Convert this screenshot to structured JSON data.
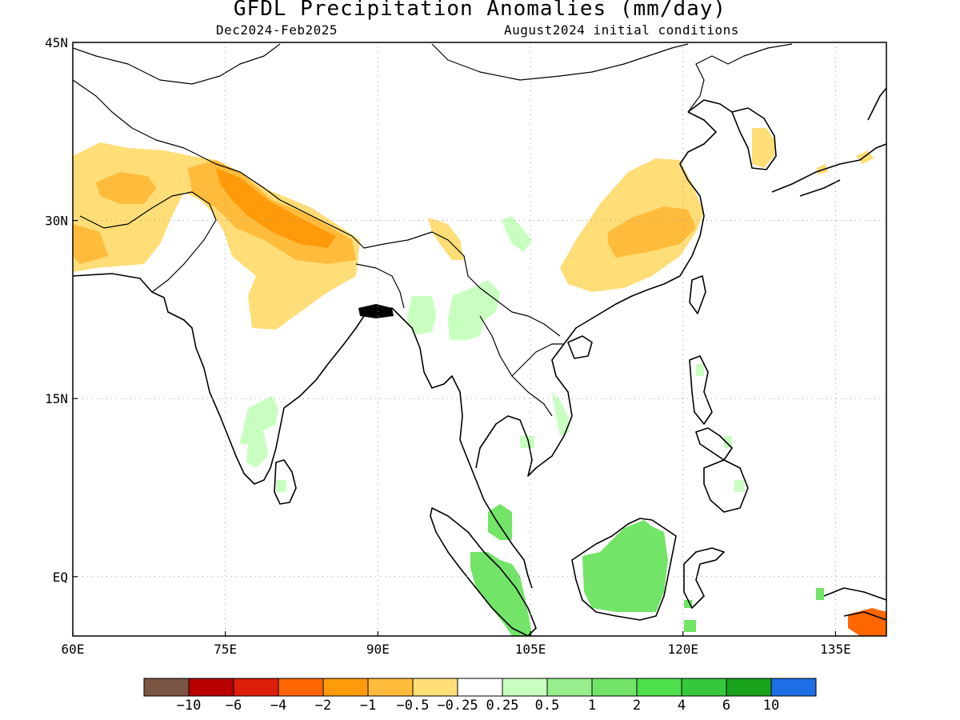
{
  "title": "GFDL Precipitation Anomalies (mm/day)",
  "subtitle_left": "Dec2024-Feb2025",
  "subtitle_right": "August2024 initial conditions",
  "map": {
    "lon_range": [
      60,
      140
    ],
    "lat_range": [
      -5,
      45
    ],
    "lon_ticks": [
      {
        "value": 60,
        "label": "60E"
      },
      {
        "value": 75,
        "label": "75E"
      },
      {
        "value": 90,
        "label": "90E"
      },
      {
        "value": 105,
        "label": "105E"
      },
      {
        "value": 120,
        "label": "120E"
      },
      {
        "value": 135,
        "label": "135E"
      }
    ],
    "lat_ticks": [
      {
        "value": 45,
        "label": "45N"
      },
      {
        "value": 30,
        "label": "30N"
      },
      {
        "value": 15,
        "label": "15N"
      },
      {
        "value": 0,
        "label": "EQ"
      }
    ],
    "grid": true,
    "grid_style": "dotted"
  },
  "colorbar": {
    "colors": [
      "#7b5544",
      "#b80000",
      "#dd1e0a",
      "#ff6600",
      "#ff9b0a",
      "#ffbc3c",
      "#ffdd77",
      "#ffffff",
      "#c8ffc0",
      "#96ee8c",
      "#72e468",
      "#4ee04c",
      "#36c83a",
      "#18a21a",
      "#1e6ee6"
    ],
    "labels": [
      "-10",
      "-6",
      "-4",
      "-2",
      "-1",
      "-0.5",
      "-0.25",
      "0.25",
      "0.5",
      "1",
      "2",
      "4",
      "6",
      "10"
    ]
  },
  "anomaly_regions": [
    {
      "name": "afghanistan-pakistan-dry",
      "color": "#ffdd77"
    },
    {
      "name": "himalaya-moderate-dry",
      "color": "#ffbc3c"
    },
    {
      "name": "nepal-core-dry",
      "color": "#ff9b0a"
    },
    {
      "name": "eastern-india-dry",
      "color": "#ffdd77"
    },
    {
      "name": "south-china-dry",
      "color": "#ffdd77"
    },
    {
      "name": "yangtze-moderate-dry",
      "color": "#ffbc3c"
    },
    {
      "name": "korea-dry",
      "color": "#ffdd77"
    },
    {
      "name": "myanmar-wet",
      "color": "#c8ffc0"
    },
    {
      "name": "south-india-wet",
      "color": "#c8ffc0"
    },
    {
      "name": "malaysia-sumatra-wet",
      "color": "#72e468"
    },
    {
      "name": "borneo-wet",
      "color": "#72e468"
    },
    {
      "name": "new-guinea-anomaly",
      "color": "#ff6600"
    }
  ]
}
